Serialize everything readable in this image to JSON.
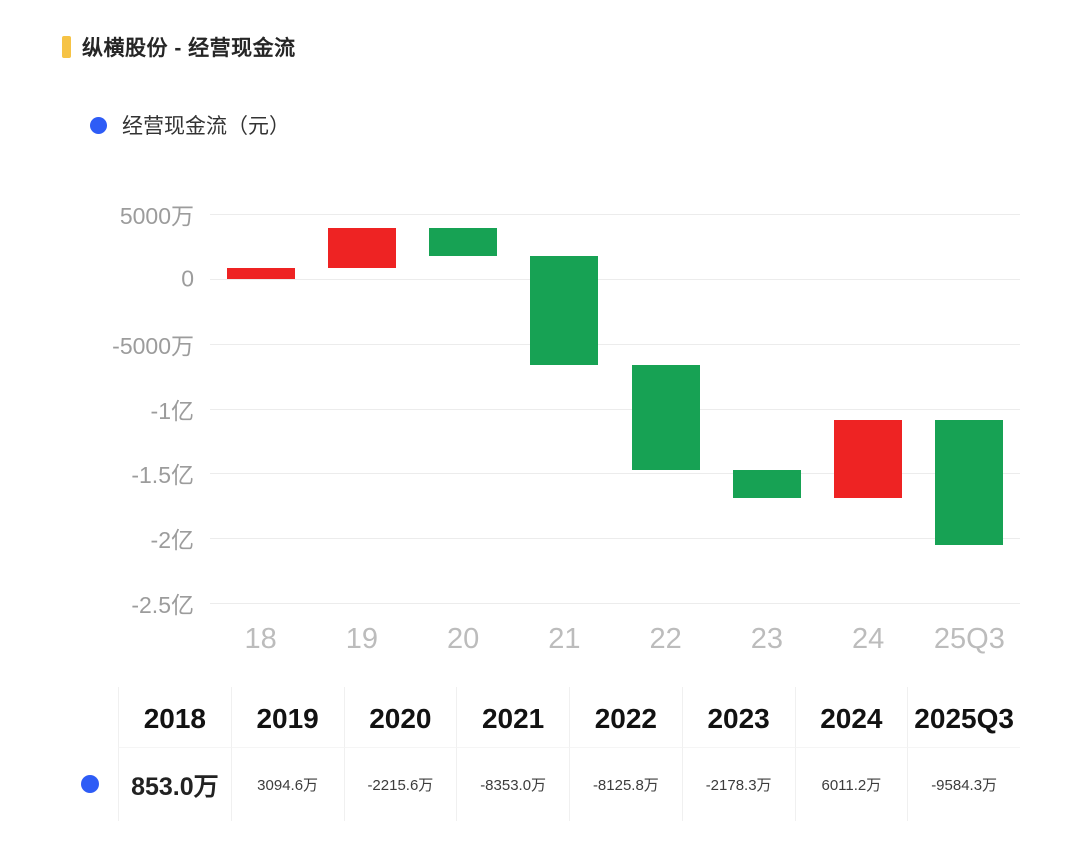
{
  "header": {
    "title": "纵横股份 - 经营现金流",
    "accent_color": "#f6c345"
  },
  "legend": {
    "label": "经营现金流（元）"
  },
  "chart_data": {
    "type": "bar",
    "subtype": "waterfall",
    "title": "纵横股份 - 经营现金流",
    "series_name": "经营现金流（元）",
    "unit": "万元",
    "categories": [
      "18",
      "19",
      "20",
      "21",
      "22",
      "23",
      "24",
      "25Q3"
    ],
    "values": [
      853.0,
      3094.6,
      -2215.6,
      -8353.0,
      -8125.8,
      -2178.3,
      6011.2,
      -9584.3
    ],
    "cumulative": [
      853.0,
      3947.6,
      1732.0,
      -6621.0,
      -14746.8,
      -16925.1,
      -10913.9,
      -20498.2
    ],
    "y_ticks": [
      {
        "label": "5000万",
        "value": 5000
      },
      {
        "label": "0",
        "value": 0
      },
      {
        "label": "-5000万",
        "value": -5000
      },
      {
        "label": "-1亿",
        "value": -10000
      },
      {
        "label": "-1.5亿",
        "value": -15000
      },
      {
        "label": "-2亿",
        "value": -20000
      },
      {
        "label": "-2.5亿",
        "value": -25000
      }
    ],
    "ylim": [
      -25000,
      5000
    ],
    "grid": true,
    "legend_position": "top-left",
    "colors": {
      "increase": "#ee2323",
      "decrease": "#17a254",
      "legend_dot": "#2e5cf6"
    }
  },
  "table": {
    "headers": [
      "2018",
      "2019",
      "2020",
      "2021",
      "2022",
      "2023",
      "2024",
      "2025Q3"
    ],
    "row": {
      "series_label": "经营现金流（元）",
      "values": [
        "853.0万",
        "3094.6万",
        "-2215.6万",
        "-8353.0万",
        "-8125.8万",
        "-2178.3万",
        "6011.2万",
        "-9584.3万"
      ]
    }
  }
}
